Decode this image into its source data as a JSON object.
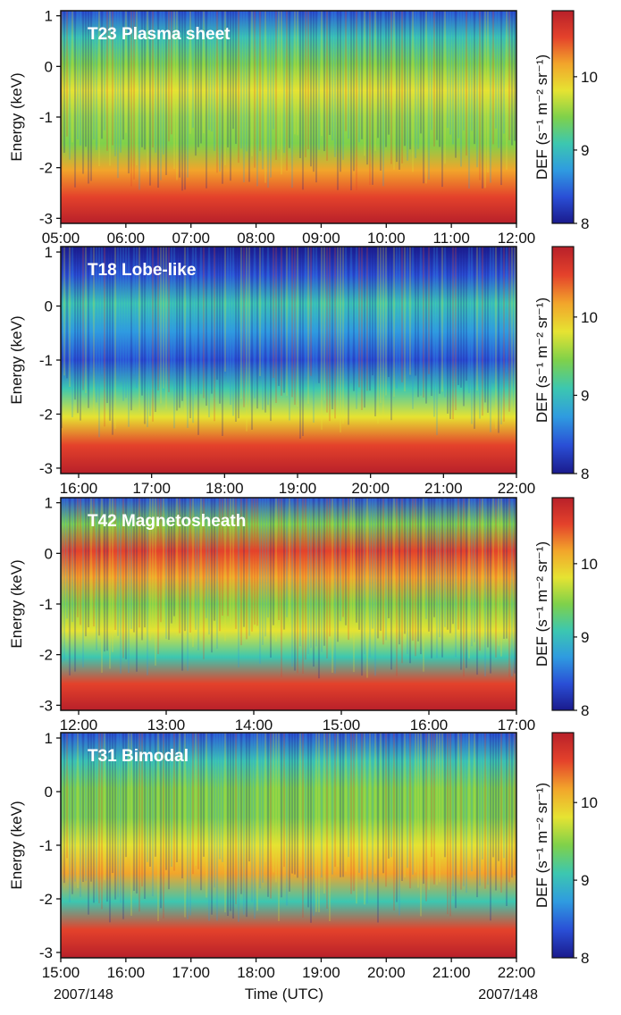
{
  "colors": {
    "colormap": [
      "#1a1a8c",
      "#2a4fd6",
      "#2f9be0",
      "#3cc7b0",
      "#7fd14a",
      "#e6e332",
      "#f2a52b",
      "#e4422b",
      "#b8202a"
    ],
    "background_band_high": "#2236b0",
    "text_on_plot": "#ffffff"
  },
  "footer": {
    "left_date": "2007/148",
    "right_date": "2007/148",
    "time_label": "Time (UTC)"
  },
  "chart_data": [
    {
      "type": "heatmap",
      "title": "T23 Plasma sheet",
      "ylabel": "Energy (keV)",
      "ylim": [
        -3.1,
        1.1
      ],
      "yticks": [
        "1",
        "0",
        "-1",
        "-2",
        "-3"
      ],
      "xticks": [
        "05:00",
        "06:00",
        "07:00",
        "08:00",
        "09:00",
        "10:00",
        "11:00",
        "12:00"
      ],
      "colorbar": {
        "label": "DEF (s⁻¹ m⁻² sr⁻¹)",
        "range": [
          8,
          10.9
        ],
        "ticks": [
          "10",
          "9",
          "8"
        ]
      }
    },
    {
      "type": "heatmap",
      "title": "T18 Lobe-like",
      "ylabel": "Energy (keV)",
      "ylim": [
        -3.1,
        1.1
      ],
      "yticks": [
        "1",
        "0",
        "-1",
        "-2",
        "-3"
      ],
      "xticks": [
        "16:00",
        "17:00",
        "18:00",
        "19:00",
        "20:00",
        "21:00",
        "22:00"
      ],
      "colorbar": {
        "label": "DEF (s⁻¹ m⁻² sr⁻¹)",
        "range": [
          8,
          10.9
        ],
        "ticks": [
          "10",
          "9",
          "8"
        ]
      }
    },
    {
      "type": "heatmap",
      "title": "T42 Magnetosheath",
      "ylabel": "Energy (keV)",
      "ylim": [
        -3.1,
        1.1
      ],
      "yticks": [
        "1",
        "0",
        "-1",
        "-2",
        "-3"
      ],
      "xticks": [
        "12:00",
        "13:00",
        "14:00",
        "15:00",
        "16:00",
        "17:00"
      ],
      "colorbar": {
        "label": "DEF (s⁻¹ m⁻² sr⁻¹)",
        "range": [
          8,
          10.9
        ],
        "ticks": [
          "10",
          "9",
          "8"
        ]
      }
    },
    {
      "type": "heatmap",
      "title": "T31 Bimodal",
      "ylabel": "Energy (keV)",
      "ylim": [
        -3.1,
        1.1
      ],
      "yticks": [
        "1",
        "0",
        "-1",
        "-2",
        "-3"
      ],
      "xticks": [
        "15:00",
        "16:00",
        "17:00",
        "18:00",
        "19:00",
        "20:00",
        "21:00",
        "22:00"
      ],
      "colorbar": {
        "label": "DEF (s⁻¹ m⁻² sr⁻¹)",
        "range": [
          8,
          10.9
        ],
        "ticks": [
          "10",
          "9",
          "8"
        ]
      }
    }
  ]
}
